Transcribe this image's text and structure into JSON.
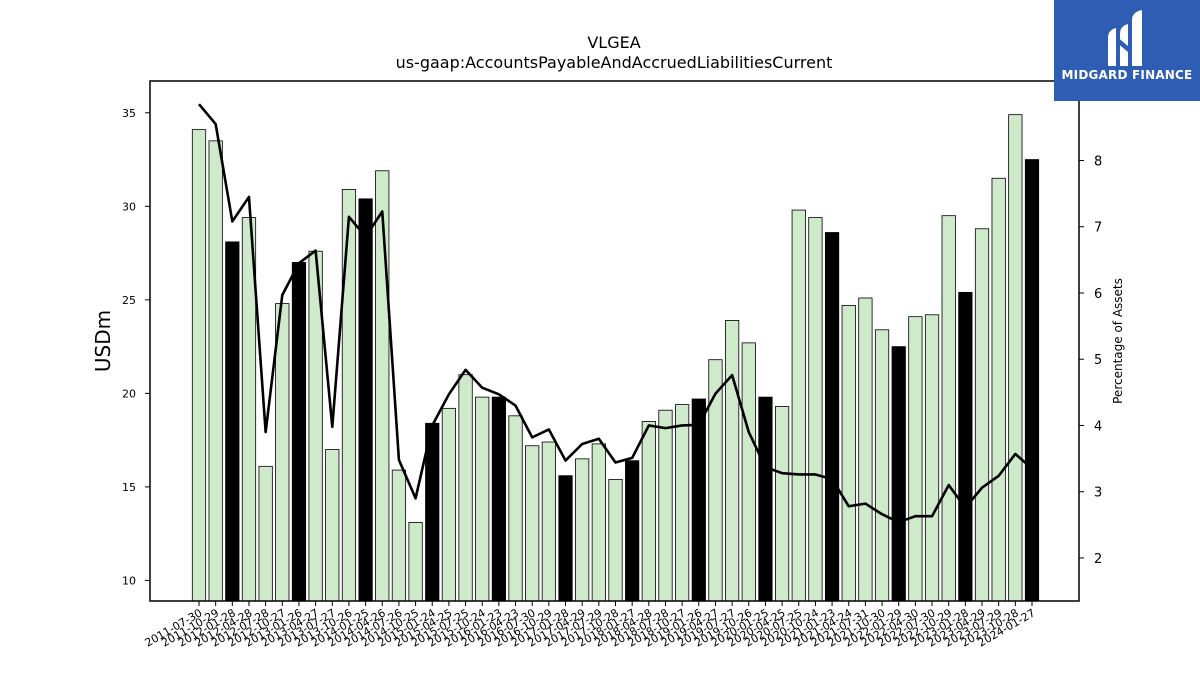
{
  "chart_data": {
    "type": "bar",
    "title": "VLGEA",
    "subtitle": "us-gaap:AccountsPayableAndAccruedLiabilitiesCurrent",
    "ylabel": "USDm",
    "y2label": "Percentage of Assets",
    "ylim": [
      8.9,
      36.7
    ],
    "y2lim": [
      1.35,
      9.2
    ],
    "yticks": [
      10,
      15,
      20,
      25,
      30,
      35
    ],
    "y2ticks": [
      2,
      3,
      4,
      5,
      6,
      7,
      8
    ],
    "grid": false,
    "colors": {
      "bar": "#cfeacb",
      "bar_highlight": "#000000",
      "line": "#000000",
      "edge": "#000000"
    },
    "categories": [
      "2011-07-30",
      "2011-10-29",
      "2012-01-28",
      "2012-04-28",
      "2012-07-28",
      "2012-10-27",
      "2013-01-26",
      "2013-04-27",
      "2013-07-27",
      "2013-10-26",
      "2014-01-25",
      "2014-04-26",
      "2014-07-26",
      "2014-10-25",
      "2015-01-24",
      "2015-04-25",
      "2015-07-25",
      "2015-10-24",
      "2016-01-23",
      "2016-04-23",
      "2016-07-30",
      "2016-10-29",
      "2017-01-28",
      "2017-04-29",
      "2017-07-29",
      "2017-10-28",
      "2018-01-27",
      "2018-04-28",
      "2018-07-28",
      "2018-10-27",
      "2019-01-26",
      "2019-04-27",
      "2019-07-27",
      "2019-10-26",
      "2020-01-25",
      "2020-04-25",
      "2020-07-25",
      "2020-10-24",
      "2021-01-23",
      "2021-04-24",
      "2021-07-31",
      "2021-10-30",
      "2022-01-29",
      "2022-04-30",
      "2022-07-30",
      "2022-10-29",
      "2023-01-28",
      "2023-04-29",
      "2023-07-29",
      "2023-10-28",
      "2024-01-27"
    ],
    "series": [
      {
        "type": "bar",
        "values": [
          34.1,
          33.5,
          28.1,
          29.4,
          16.1,
          24.8,
          27.0,
          27.6,
          17.0,
          30.9,
          30.4,
          31.9,
          15.9,
          13.1,
          18.4,
          19.2,
          21.0,
          19.8,
          19.8,
          18.8,
          17.2,
          17.4,
          15.6,
          16.5,
          17.3,
          15.4,
          16.4,
          18.5,
          19.1,
          19.4,
          19.7,
          21.8,
          23.9,
          22.7,
          19.8,
          19.3,
          29.8,
          29.4,
          28.6,
          24.7,
          25.1,
          23.4,
          22.5,
          24.1,
          24.2,
          29.5,
          25.4,
          28.8,
          31.5,
          34.9,
          32.5
        ],
        "highlight": [
          false,
          false,
          true,
          false,
          false,
          false,
          true,
          false,
          false,
          false,
          true,
          false,
          false,
          false,
          true,
          false,
          false,
          false,
          true,
          false,
          false,
          false,
          true,
          false,
          false,
          false,
          true,
          false,
          false,
          false,
          true,
          false,
          false,
          false,
          true,
          false,
          false,
          false,
          true,
          false,
          false,
          false,
          true,
          false,
          false,
          false,
          true,
          false,
          false,
          false,
          true
        ]
      },
      {
        "type": "line",
        "axis": "right",
        "values": [
          8.85,
          8.55,
          7.08,
          7.45,
          3.9,
          5.97,
          6.45,
          6.64,
          3.98,
          7.15,
          6.85,
          7.23,
          3.48,
          2.9,
          4.0,
          4.47,
          4.84,
          4.57,
          4.47,
          4.3,
          3.82,
          3.94,
          3.47,
          3.72,
          3.8,
          3.44,
          3.51,
          4.0,
          3.96,
          4.0,
          4.01,
          4.48,
          4.76,
          3.9,
          3.37,
          3.28,
          3.26,
          3.26,
          3.19,
          2.78,
          2.82,
          2.66,
          2.54,
          2.63,
          2.63,
          3.1,
          2.76,
          3.06,
          3.24,
          3.57,
          3.35
        ]
      }
    ]
  },
  "logo": {
    "text": "MIDGARD FINANCE"
  }
}
